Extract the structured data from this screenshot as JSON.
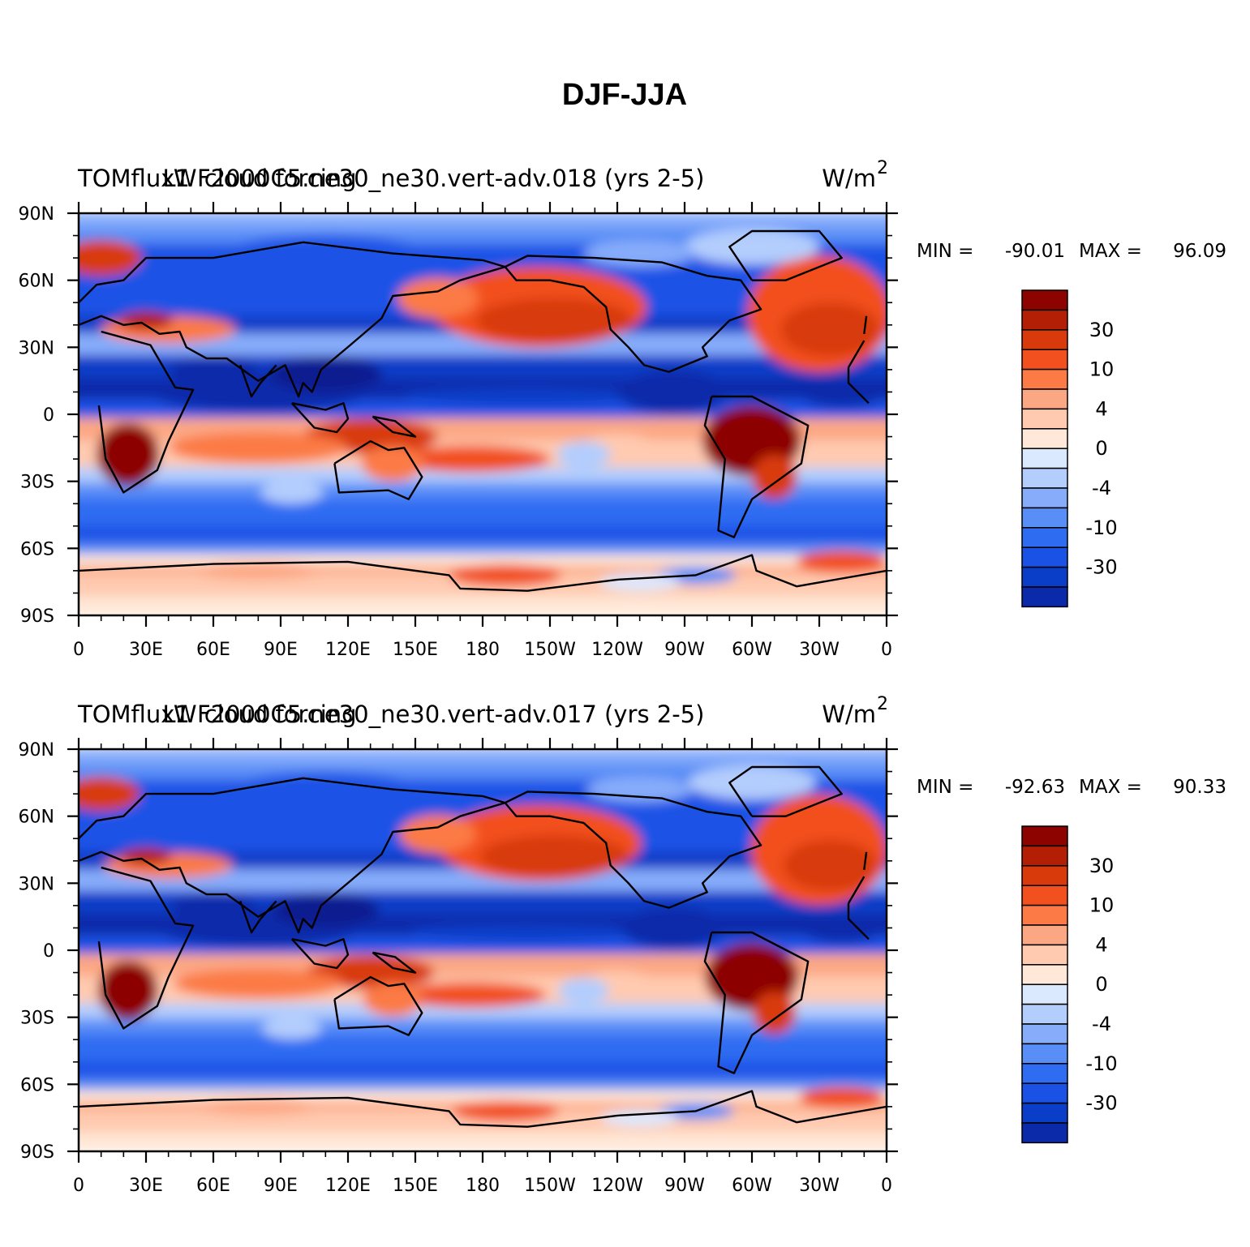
{
  "title": "DJF-JJA",
  "colors": {
    "levels": [
      "#0a1a8f",
      "#0a2aaa",
      "#0b3ec8",
      "#1a52e6",
      "#2e6cf2",
      "#5a8ef7",
      "#86acfa",
      "#b3cdfd",
      "#dbe9ff",
      "#ffe8d8",
      "#ffcab0",
      "#fca784",
      "#fb7a45",
      "#f2501e",
      "#d83a0c",
      "#b31f05",
      "#8c0300"
    ],
    "coast": "#000000"
  },
  "chart_data": [
    {
      "type": "heatmap",
      "left_title": "TOMflux1 F2000C5.ne30_ne30.vert-adv.018 (yrs 2-5)",
      "center_title": "LW cloud forcing",
      "right_title": "W/m",
      "right_title_sup": "2",
      "min_label": "MIN =",
      "min_value": "-90.01",
      "max_label": "MAX =",
      "max_value": "96.09",
      "x_ticks": [
        "0",
        "30E",
        "60E",
        "90E",
        "120E",
        "150E",
        "180",
        "150W",
        "120W",
        "90W",
        "60W",
        "30W",
        "0"
      ],
      "y_ticks": [
        "90N",
        "60N",
        "30N",
        "0",
        "30S",
        "60S",
        "90S"
      ],
      "xlim": [
        0,
        360
      ],
      "ylim": [
        -90,
        90
      ],
      "colorbar_labels": [
        "30",
        "10",
        "4",
        "0",
        "-4",
        "-10",
        "-30"
      ]
    },
    {
      "type": "heatmap",
      "left_title": "TOMflux1 F2000C5.ne30_ne30.vert-adv.017 (yrs 2-5)",
      "center_title": "LW cloud forcing",
      "right_title": "W/m",
      "right_title_sup": "2",
      "min_label": "MIN =",
      "min_value": "-92.63",
      "max_label": "MAX =",
      "max_value": "90.33",
      "x_ticks": [
        "0",
        "30E",
        "60E",
        "90E",
        "120E",
        "150E",
        "180",
        "150W",
        "120W",
        "90W",
        "60W",
        "30W",
        "0"
      ],
      "y_ticks": [
        "90N",
        "60N",
        "30N",
        "0",
        "30S",
        "60S",
        "90S"
      ],
      "xlim": [
        0,
        360
      ],
      "ylim": [
        -90,
        90
      ],
      "colorbar_labels": [
        "30",
        "10",
        "4",
        "0",
        "-4",
        "-10",
        "-30"
      ]
    }
  ]
}
